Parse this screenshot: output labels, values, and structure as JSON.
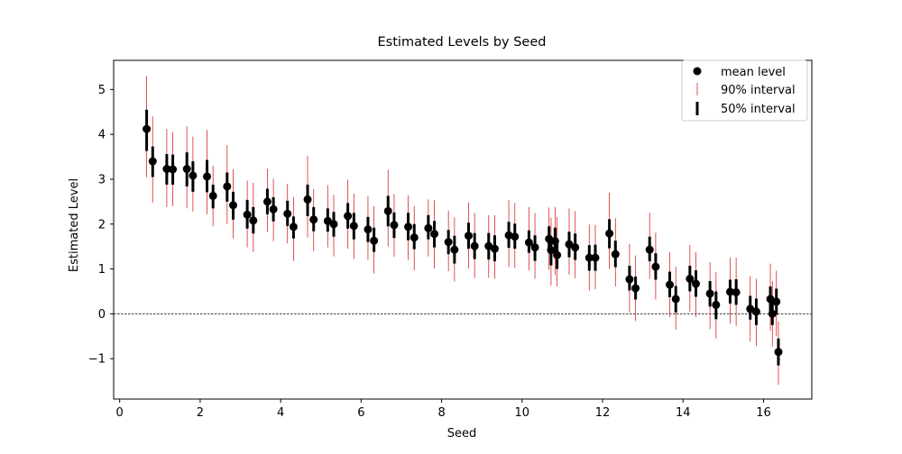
{
  "chart_data": {
    "type": "scatter",
    "title": "Estimated Levels by Seed",
    "xlabel": "Seed",
    "ylabel": "Estimated Level",
    "xlim": [
      -0.15,
      17.2
    ],
    "ylim": [
      -1.9,
      5.65
    ],
    "x_ticks": [
      0,
      2,
      4,
      6,
      8,
      10,
      12,
      14,
      16
    ],
    "x_tick_labels": [
      "0",
      "2",
      "4",
      "6",
      "8",
      "10",
      "12",
      "14",
      "16"
    ],
    "y_ticks": [
      -1,
      0,
      1,
      2,
      3,
      4,
      5
    ],
    "y_tick_labels": [
      "−1",
      "0",
      "1",
      "2",
      "3",
      "4",
      "5"
    ],
    "grid": false,
    "reference_line_y": 0,
    "legend_position": "top-right",
    "legend": [
      {
        "label": "mean level",
        "marker": "dot"
      },
      {
        "label": "90% interval",
        "marker": "thin-line"
      },
      {
        "label": "50% interval",
        "marker": "thick-line"
      }
    ],
    "colors": {
      "mean": "#000000",
      "interval90": "#d62728",
      "interval50": "#000000",
      "zero_line": "#000000"
    },
    "series": [
      {
        "name": "mean level",
        "x": [
          0.67,
          0.82,
          1.17,
          1.32,
          1.67,
          1.82,
          2.17,
          2.32,
          2.67,
          2.82,
          3.17,
          3.32,
          3.67,
          3.82,
          4.17,
          4.32,
          4.67,
          4.82,
          5.17,
          5.32,
          5.67,
          5.82,
          6.17,
          6.32,
          6.67,
          6.82,
          7.17,
          7.32,
          7.67,
          7.82,
          8.17,
          8.32,
          8.67,
          8.82,
          9.17,
          9.32,
          9.67,
          9.82,
          10.17,
          10.32,
          10.67,
          10.72,
          10.82,
          10.87,
          11.17,
          11.32,
          11.67,
          11.82,
          12.17,
          12.32,
          12.67,
          12.82,
          13.17,
          13.32,
          13.67,
          13.82,
          14.17,
          14.32,
          14.67,
          14.82,
          15.17,
          15.32,
          15.67,
          15.82,
          16.17,
          16.22,
          16.32,
          16.37
        ],
        "y": [
          4.12,
          3.4,
          3.23,
          3.22,
          3.23,
          3.08,
          3.06,
          2.63,
          2.84,
          2.42,
          2.21,
          2.08,
          2.5,
          2.33,
          2.23,
          1.94,
          2.55,
          2.1,
          2.07,
          2.0,
          2.18,
          1.96,
          1.88,
          1.63,
          2.29,
          1.98,
          1.94,
          1.7,
          1.91,
          1.78,
          1.6,
          1.43,
          1.74,
          1.51,
          1.51,
          1.45,
          1.75,
          1.72,
          1.59,
          1.48,
          1.67,
          1.42,
          1.62,
          1.31,
          1.55,
          1.48,
          1.25,
          1.25,
          1.79,
          1.33,
          0.77,
          0.57,
          1.43,
          1.05,
          0.65,
          0.33,
          0.78,
          0.67,
          0.45,
          0.2,
          0.49,
          0.48,
          0.11,
          0.05,
          0.33,
          0.0,
          0.27,
          -0.85
        ]
      },
      {
        "name": "50% interval",
        "low": [
          3.63,
          3.05,
          2.88,
          2.88,
          2.84,
          2.72,
          2.71,
          2.35,
          2.5,
          2.1,
          1.9,
          1.79,
          2.22,
          2.06,
          1.96,
          1.68,
          2.18,
          1.84,
          1.83,
          1.72,
          1.9,
          1.66,
          1.6,
          1.38,
          1.95,
          1.69,
          1.64,
          1.44,
          1.66,
          1.48,
          1.33,
          1.12,
          1.45,
          1.22,
          1.21,
          1.17,
          1.47,
          1.45,
          1.36,
          1.18,
          1.38,
          1.08,
          1.32,
          1.0,
          1.26,
          1.2,
          0.96,
          0.96,
          1.46,
          1.04,
          0.52,
          0.32,
          1.17,
          0.76,
          0.37,
          0.03,
          0.5,
          0.38,
          0.16,
          -0.12,
          0.23,
          0.2,
          -0.13,
          -0.25,
          0.05,
          -0.25,
          -0.02,
          -1.15
        ],
        "high": [
          4.55,
          3.73,
          3.56,
          3.55,
          3.6,
          3.4,
          3.43,
          2.88,
          3.15,
          2.72,
          2.54,
          2.38,
          2.79,
          2.6,
          2.52,
          2.17,
          2.88,
          2.38,
          2.35,
          2.27,
          2.47,
          2.25,
          2.16,
          1.92,
          2.63,
          2.26,
          2.25,
          2.0,
          2.2,
          2.07,
          1.87,
          1.74,
          2.03,
          1.8,
          1.8,
          1.75,
          2.05,
          2.01,
          1.86,
          1.75,
          1.95,
          1.72,
          1.92,
          1.6,
          1.83,
          1.79,
          1.53,
          1.54,
          2.11,
          1.63,
          1.07,
          0.83,
          1.72,
          1.35,
          0.94,
          0.62,
          1.07,
          0.97,
          0.73,
          0.5,
          0.76,
          0.77,
          0.4,
          0.34,
          0.61,
          0.28,
          0.56,
          -0.55
        ]
      },
      {
        "name": "90% interval",
        "low": [
          3.05,
          2.48,
          2.38,
          2.4,
          2.35,
          2.28,
          2.22,
          1.95,
          2.0,
          1.68,
          1.48,
          1.38,
          1.82,
          1.62,
          1.57,
          1.18,
          1.7,
          1.4,
          1.48,
          1.28,
          1.45,
          1.22,
          1.2,
          0.9,
          1.5,
          1.27,
          1.2,
          0.97,
          1.28,
          1.01,
          0.95,
          0.72,
          1.01,
          0.8,
          0.8,
          0.78,
          1.04,
          1.02,
          0.97,
          0.78,
          0.98,
          0.63,
          0.86,
          0.61,
          0.87,
          0.79,
          0.52,
          0.55,
          1.0,
          0.61,
          0.03,
          -0.16,
          0.78,
          0.32,
          -0.07,
          -0.35,
          0.05,
          -0.07,
          -0.34,
          -0.55,
          -0.22,
          -0.27,
          -0.62,
          -0.72,
          -0.38,
          -0.73,
          -0.5,
          -1.58
        ],
        "high": [
          5.3,
          4.4,
          4.12,
          4.05,
          4.18,
          3.95,
          4.1,
          3.3,
          3.76,
          3.22,
          2.97,
          2.92,
          3.23,
          3.01,
          2.9,
          2.6,
          3.52,
          2.78,
          2.87,
          2.65,
          2.99,
          2.68,
          2.62,
          2.4,
          3.21,
          2.67,
          2.64,
          2.4,
          2.55,
          2.53,
          2.3,
          2.15,
          2.48,
          2.25,
          2.2,
          2.2,
          2.53,
          2.47,
          2.38,
          2.25,
          2.37,
          2.14,
          2.38,
          2.16,
          2.35,
          2.29,
          1.99,
          1.98,
          2.7,
          2.13,
          1.56,
          1.3,
          2.25,
          1.81,
          1.37,
          1.05,
          1.53,
          1.37,
          1.15,
          0.93,
          1.25,
          1.25,
          0.84,
          0.78,
          1.12,
          0.73,
          0.96,
          -0.17
        ]
      }
    ]
  }
}
